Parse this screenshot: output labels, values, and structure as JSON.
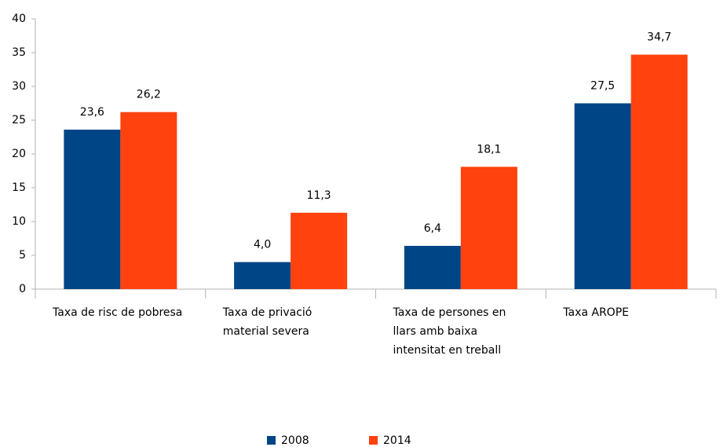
{
  "chart_data": {
    "type": "bar",
    "categories": [
      "Taxa de risc de pobresa",
      "Taxa de privació material severa",
      "Taxa de persones en llars amb baixa intensitat en treball",
      "Taxa AROPE"
    ],
    "series": [
      {
        "name": "2008",
        "color": "#004586",
        "values": [
          23.6,
          4.0,
          6.4,
          27.5
        ],
        "value_labels": [
          "23,6",
          "4,0",
          "6,4",
          "27,5"
        ]
      },
      {
        "name": "2014",
        "color": "#ff420e",
        "values": [
          26.2,
          11.3,
          18.1,
          34.7
        ],
        "value_labels": [
          "26,2",
          "11,3",
          "18,1",
          "34,7"
        ]
      }
    ],
    "ylim": [
      0,
      40
    ],
    "yticks": [
      0,
      5,
      10,
      15,
      20,
      25,
      30,
      35,
      40
    ],
    "grid": false,
    "legend": "bottom"
  }
}
